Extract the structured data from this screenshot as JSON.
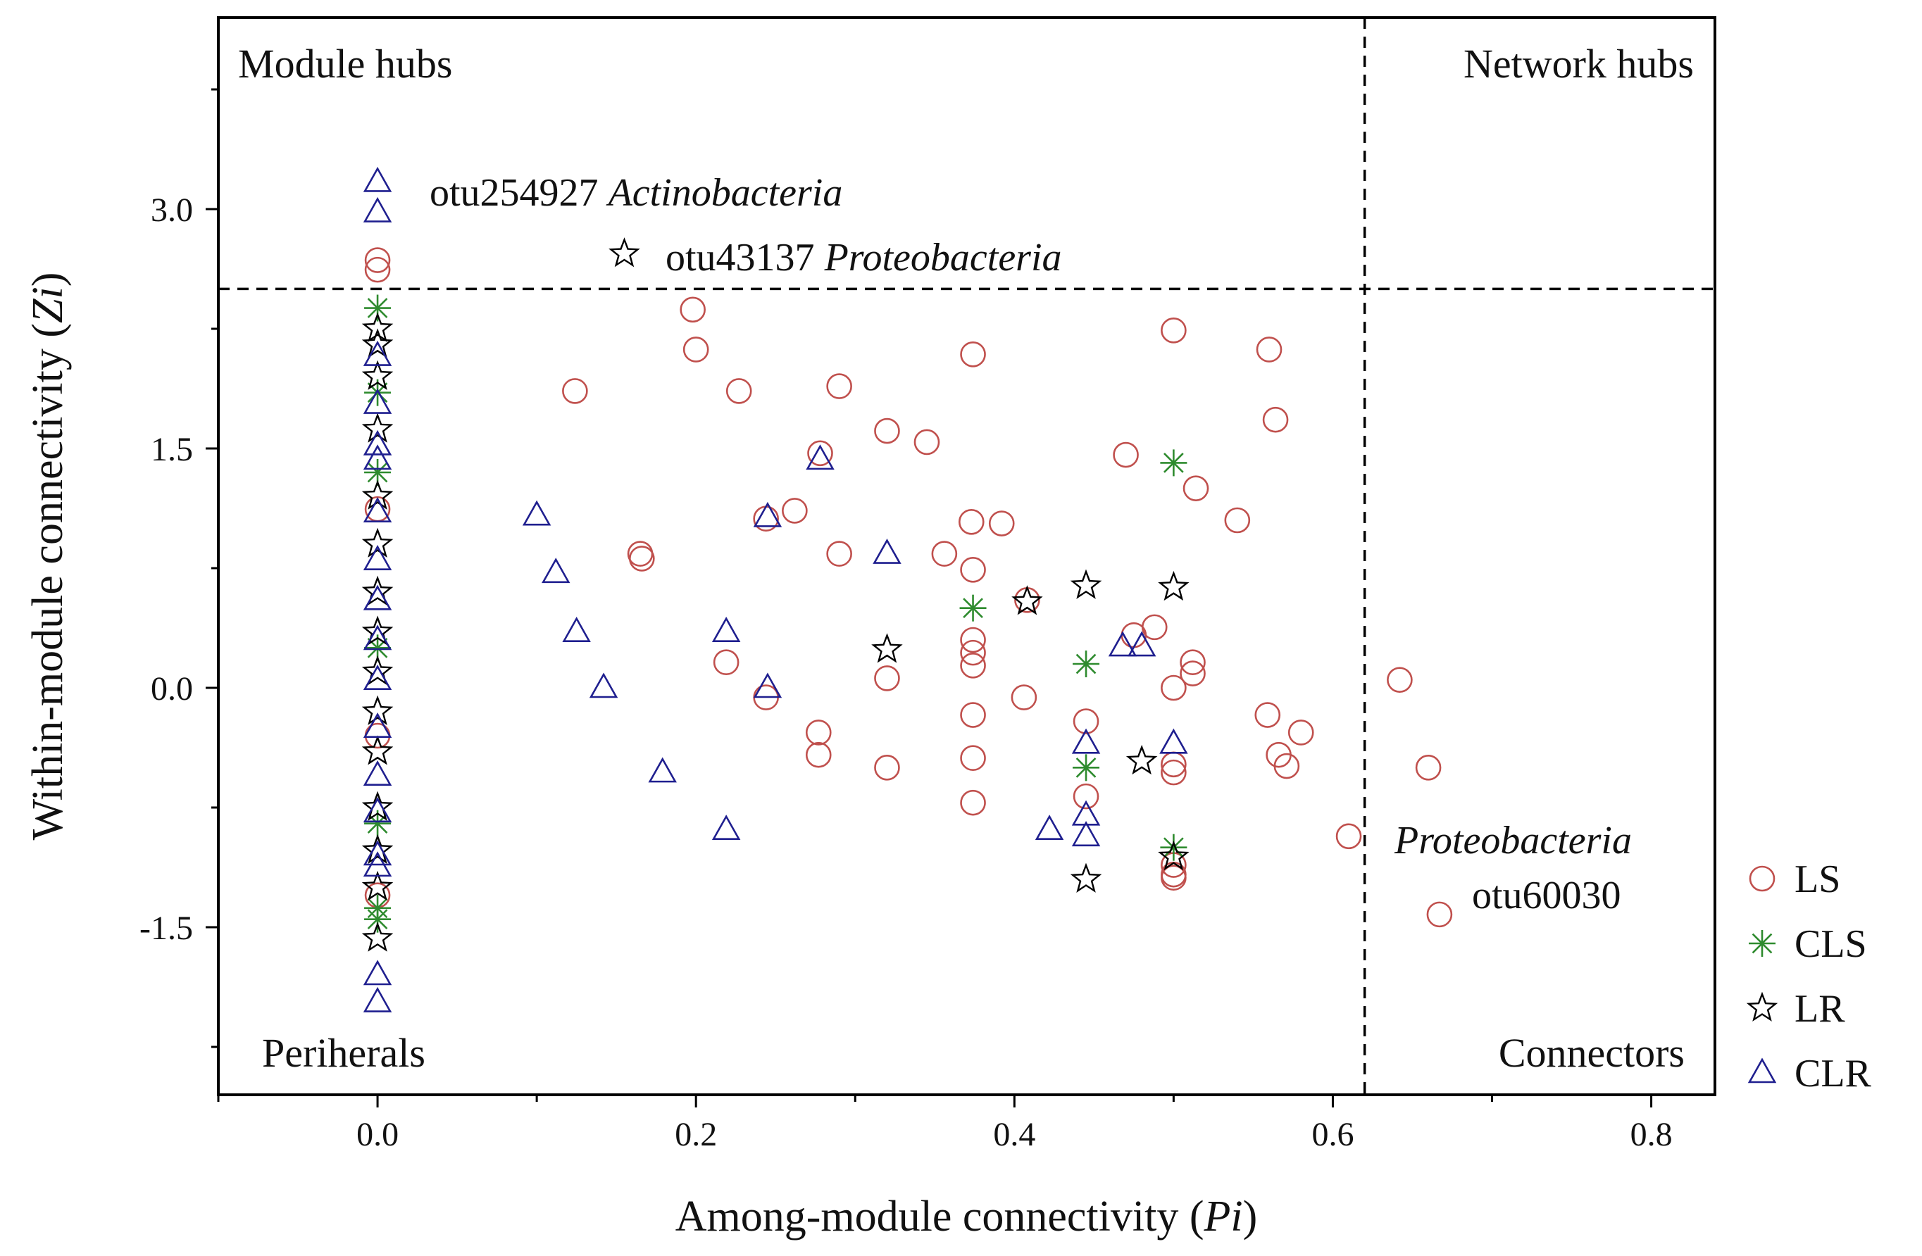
{
  "chart_data": {
    "type": "scatter",
    "title": "",
    "xlabel": "Among-module connectivity (Pi)",
    "ylabel": "Within-module connectivity (Zi)",
    "xlabel_parts": {
      "main": "Among-module connectivity (",
      "italic": "Pi",
      "end": ")"
    },
    "ylabel_parts": {
      "main": "Within-module connectivity (",
      "italic": "Zi",
      "end": ")"
    },
    "xlim": [
      -0.1,
      0.84
    ],
    "ylim": [
      -2.55,
      4.2
    ],
    "x_ticks": [
      0.0,
      0.2,
      0.4,
      0.6,
      0.8
    ],
    "x_tick_labels": [
      "0.0",
      "0.2",
      "0.4",
      "0.6",
      "0.8"
    ],
    "y_ticks": [
      -1.5,
      0.0,
      1.5,
      3.0
    ],
    "y_tick_labels": [
      "-1.5",
      "0.0",
      "1.5",
      "3.0"
    ],
    "thresholds": {
      "zi": 2.5,
      "pi": 0.62
    },
    "quadrant_labels": {
      "top_left": "Module hubs",
      "top_right": "Network hubs",
      "bottom_left": "Periherals",
      "bottom_right": "Connectors"
    },
    "annotations": [
      {
        "id": "actino",
        "otu": "otu254927",
        "taxon": "Actinobacteria",
        "x": 0.0,
        "y": 3.15
      },
      {
        "id": "proteo1",
        "otu": "otu43137",
        "taxon": "Proteobacteria",
        "x": 0.155,
        "y": 2.72
      },
      {
        "id": "proteo2",
        "otu": "otu60030",
        "taxon": "Proteobacteria",
        "x": 0.667,
        "y": -1.42
      }
    ],
    "legend_position": "right",
    "series": [
      {
        "name": "LS",
        "marker": "circle",
        "color": "#c0504d",
        "points": [
          [
            0.198,
            2.37
          ],
          [
            0.2,
            2.12
          ],
          [
            0.227,
            1.86
          ],
          [
            0.124,
            1.86
          ],
          [
            0.29,
            1.89
          ],
          [
            0.374,
            2.09
          ],
          [
            0.5,
            2.24
          ],
          [
            0.56,
            2.12
          ],
          [
            0.564,
            1.68
          ],
          [
            0.32,
            1.61
          ],
          [
            0.345,
            1.54
          ],
          [
            0.278,
            1.47
          ],
          [
            0.47,
            1.46
          ],
          [
            0.514,
            1.25
          ],
          [
            0.54,
            1.05
          ],
          [
            0.262,
            1.11
          ],
          [
            0.244,
            1.06
          ],
          [
            0.373,
            1.04
          ],
          [
            0.392,
            1.03
          ],
          [
            0.165,
            0.84
          ],
          [
            0.166,
            0.81
          ],
          [
            0.29,
            0.84
          ],
          [
            0.356,
            0.84
          ],
          [
            0.374,
            0.74
          ],
          [
            0.408,
            0.55
          ],
          [
            0.475,
            0.33
          ],
          [
            0.488,
            0.38
          ],
          [
            0.374,
            0.3
          ],
          [
            0.374,
            0.22
          ],
          [
            0.374,
            0.14
          ],
          [
            0.219,
            0.16
          ],
          [
            0.32,
            0.06
          ],
          [
            0.512,
            0.16
          ],
          [
            0.512,
            0.09
          ],
          [
            0.5,
            0.0
          ],
          [
            0.642,
            0.05
          ],
          [
            0.244,
            -0.06
          ],
          [
            0.406,
            -0.06
          ],
          [
            0.374,
            -0.17
          ],
          [
            0.445,
            -0.21
          ],
          [
            0.559,
            -0.17
          ],
          [
            0.58,
            -0.28
          ],
          [
            0.277,
            -0.28
          ],
          [
            0.277,
            -0.42
          ],
          [
            0.374,
            -0.44
          ],
          [
            0.566,
            -0.42
          ],
          [
            0.571,
            -0.49
          ],
          [
            0.32,
            -0.5
          ],
          [
            0.5,
            -0.48
          ],
          [
            0.5,
            -0.53
          ],
          [
            0.445,
            -0.68
          ],
          [
            0.374,
            -0.72
          ],
          [
            0.66,
            -0.5
          ],
          [
            0.61,
            -0.93
          ],
          [
            0.5,
            -1.11
          ],
          [
            0.5,
            -1.17
          ],
          [
            0.5,
            -1.19
          ],
          [
            0.667,
            -1.42
          ],
          [
            0.0,
            2.68
          ],
          [
            0.0,
            2.62
          ],
          [
            0.0,
            1.12
          ],
          [
            0.0,
            -0.3
          ],
          [
            0.0,
            -1.3
          ]
        ]
      },
      {
        "name": "CLS",
        "marker": "asterisk",
        "color": "#2e8b2e",
        "points": [
          [
            0.5,
            1.41
          ],
          [
            0.374,
            0.5
          ],
          [
            0.445,
            0.15
          ],
          [
            0.445,
            -0.5
          ],
          [
            0.5,
            -1.0
          ],
          [
            0.0,
            2.38
          ],
          [
            0.0,
            1.85
          ],
          [
            0.0,
            1.35
          ],
          [
            0.0,
            0.25
          ],
          [
            0.0,
            -0.85
          ],
          [
            0.0,
            -1.38
          ],
          [
            0.0,
            -1.45
          ]
        ]
      },
      {
        "name": "LR",
        "marker": "star",
        "color": "#000000",
        "points": [
          [
            0.155,
            2.72
          ],
          [
            0.445,
            0.64
          ],
          [
            0.5,
            0.63
          ],
          [
            0.408,
            0.54
          ],
          [
            0.32,
            0.24
          ],
          [
            0.48,
            -0.46
          ],
          [
            0.5,
            -1.06
          ],
          [
            0.445,
            -1.2
          ],
          [
            0.0,
            2.25
          ],
          [
            0.0,
            2.15
          ],
          [
            0.0,
            1.95
          ],
          [
            0.0,
            1.62
          ],
          [
            0.0,
            1.2
          ],
          [
            0.0,
            0.9
          ],
          [
            0.0,
            0.6
          ],
          [
            0.0,
            0.35
          ],
          [
            0.0,
            0.1
          ],
          [
            0.0,
            -0.15
          ],
          [
            0.0,
            -0.4
          ],
          [
            0.0,
            -0.75
          ],
          [
            0.0,
            -1.02
          ],
          [
            0.0,
            -1.25
          ],
          [
            0.0,
            -1.57
          ]
        ]
      },
      {
        "name": "CLR",
        "marker": "triangle",
        "color": "#1f1f8f",
        "points": [
          [
            0.0,
            3.17
          ],
          [
            0.0,
            2.98
          ],
          [
            0.0,
            2.08
          ],
          [
            0.0,
            1.78
          ],
          [
            0.0,
            1.52
          ],
          [
            0.0,
            1.43
          ],
          [
            0.0,
            1.1
          ],
          [
            0.0,
            0.8
          ],
          [
            0.0,
            0.55
          ],
          [
            0.0,
            0.3
          ],
          [
            0.0,
            0.05
          ],
          [
            0.0,
            -0.25
          ],
          [
            0.0,
            -0.55
          ],
          [
            0.0,
            -0.78
          ],
          [
            0.0,
            -1.05
          ],
          [
            0.0,
            -1.12
          ],
          [
            0.0,
            -1.8
          ],
          [
            0.0,
            -1.97
          ],
          [
            0.1,
            1.08
          ],
          [
            0.112,
            0.72
          ],
          [
            0.125,
            0.35
          ],
          [
            0.142,
            0.0
          ],
          [
            0.179,
            -0.53
          ],
          [
            0.219,
            0.35
          ],
          [
            0.219,
            -0.89
          ],
          [
            0.245,
            1.07
          ],
          [
            0.245,
            0.0
          ],
          [
            0.278,
            1.43
          ],
          [
            0.32,
            0.84
          ],
          [
            0.422,
            -0.89
          ],
          [
            0.445,
            -0.35
          ],
          [
            0.445,
            -0.8
          ],
          [
            0.445,
            -0.93
          ],
          [
            0.468,
            0.26
          ],
          [
            0.48,
            0.26
          ],
          [
            0.5,
            -0.35
          ]
        ]
      }
    ]
  }
}
